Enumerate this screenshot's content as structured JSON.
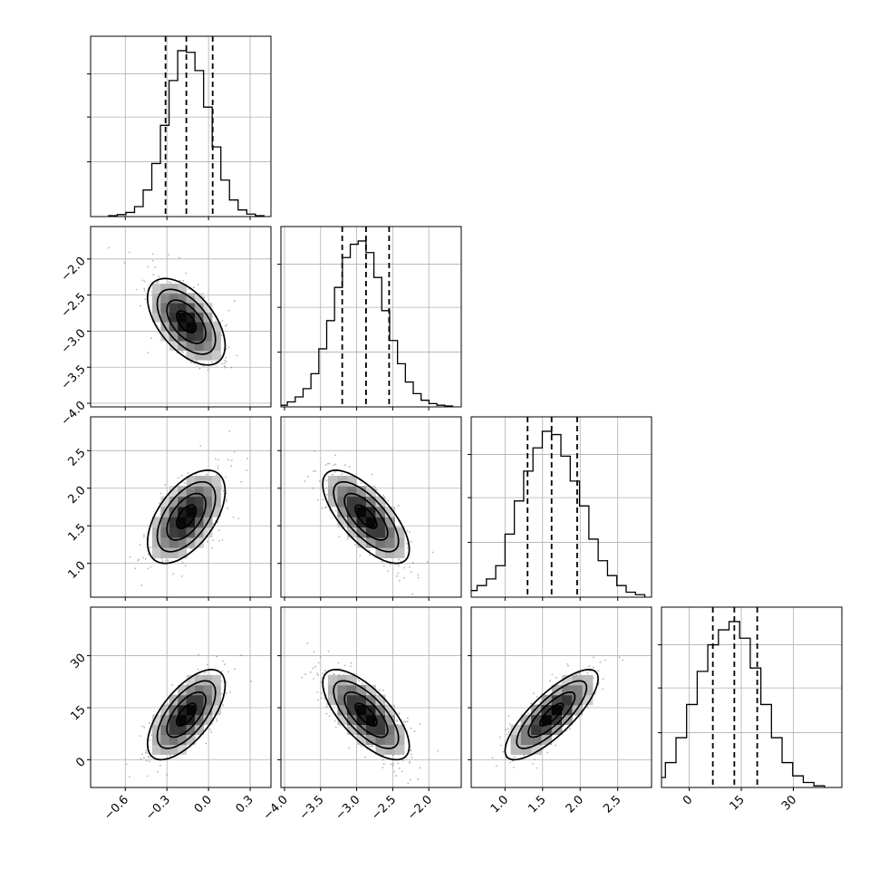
{
  "chart_data": {
    "type": "corner",
    "parameters": [
      {
        "range": [
          -0.85,
          0.45
        ],
        "ticks": [
          -0.6,
          -0.3,
          0.0,
          0.3
        ],
        "tick_labels": [
          "−0.6",
          "−0.3",
          "0.0",
          "0.3"
        ],
        "mean": -0.16,
        "sd": 0.14,
        "quantiles": [
          -0.31,
          -0.16,
          0.03
        ],
        "hist_bins": [
          0.005,
          0.012,
          0.025,
          0.06,
          0.16,
          0.32,
          0.55,
          0.82,
          1.0,
          0.99,
          0.88,
          0.66,
          0.42,
          0.22,
          0.1,
          0.04,
          0.015,
          0.005
        ]
      },
      {
        "range": [
          -4.05,
          -1.55
        ],
        "ticks": [
          -4.0,
          -3.5,
          -3.0,
          -2.5,
          -2.0
        ],
        "tick_labels": [
          "−4.0",
          "−3.5",
          "−3.0",
          "−2.5",
          "−2.0"
        ],
        "mean": -2.87,
        "sd": 0.3,
        "quantiles": [
          -3.2,
          -2.87,
          -2.55
        ],
        "hist_bins": [
          0.01,
          0.03,
          0.06,
          0.11,
          0.2,
          0.35,
          0.52,
          0.72,
          0.9,
          0.98,
          1.0,
          0.93,
          0.78,
          0.58,
          0.4,
          0.26,
          0.15,
          0.08,
          0.04,
          0.02,
          0.01,
          0.005
        ]
      },
      {
        "range": [
          0.55,
          2.95
        ],
        "ticks": [
          1.0,
          1.5,
          2.0,
          2.5
        ],
        "tick_labels": [
          "1.0",
          "1.5",
          "2.0",
          "2.5"
        ],
        "mean": 1.62,
        "sd": 0.31,
        "quantiles": [
          1.3,
          1.62,
          1.96
        ],
        "hist_bins": [
          0.01,
          0.04,
          0.07,
          0.11,
          0.19,
          0.38,
          0.58,
          0.76,
          0.9,
          1.0,
          0.98,
          0.85,
          0.7,
          0.55,
          0.35,
          0.22,
          0.13,
          0.07,
          0.03,
          0.015
        ]
      },
      {
        "range": [
          -8,
          44
        ],
        "ticks": [
          0,
          15,
          30
        ],
        "tick_labels": [
          "0",
          "15",
          "30"
        ],
        "mean": 13.0,
        "sd": 6.5,
        "quantiles": [
          6.8,
          13.0,
          19.6
        ],
        "hist_bins": [
          0.02,
          0.06,
          0.15,
          0.3,
          0.5,
          0.7,
          0.86,
          0.95,
          1.0,
          0.9,
          0.72,
          0.5,
          0.3,
          0.15,
          0.07,
          0.03,
          0.01
        ]
      }
    ],
    "correlations": [
      [
        1.0,
        -0.55,
        0.55,
        0.65
      ],
      [
        -0.55,
        1.0,
        -0.7,
        -0.7
      ],
      [
        0.55,
        -0.7,
        1.0,
        0.8
      ],
      [
        0.65,
        -0.7,
        0.8,
        1.0
      ]
    ],
    "contour_levels_sigma": [
      0.5,
      1.0,
      1.5,
      2.0
    ],
    "quantile_lines": [
      0.16,
      0.5,
      0.84
    ],
    "xlabels": [
      "",
      "",
      "",
      ""
    ],
    "ylabels": [
      "",
      "",
      "",
      ""
    ],
    "title": ""
  }
}
